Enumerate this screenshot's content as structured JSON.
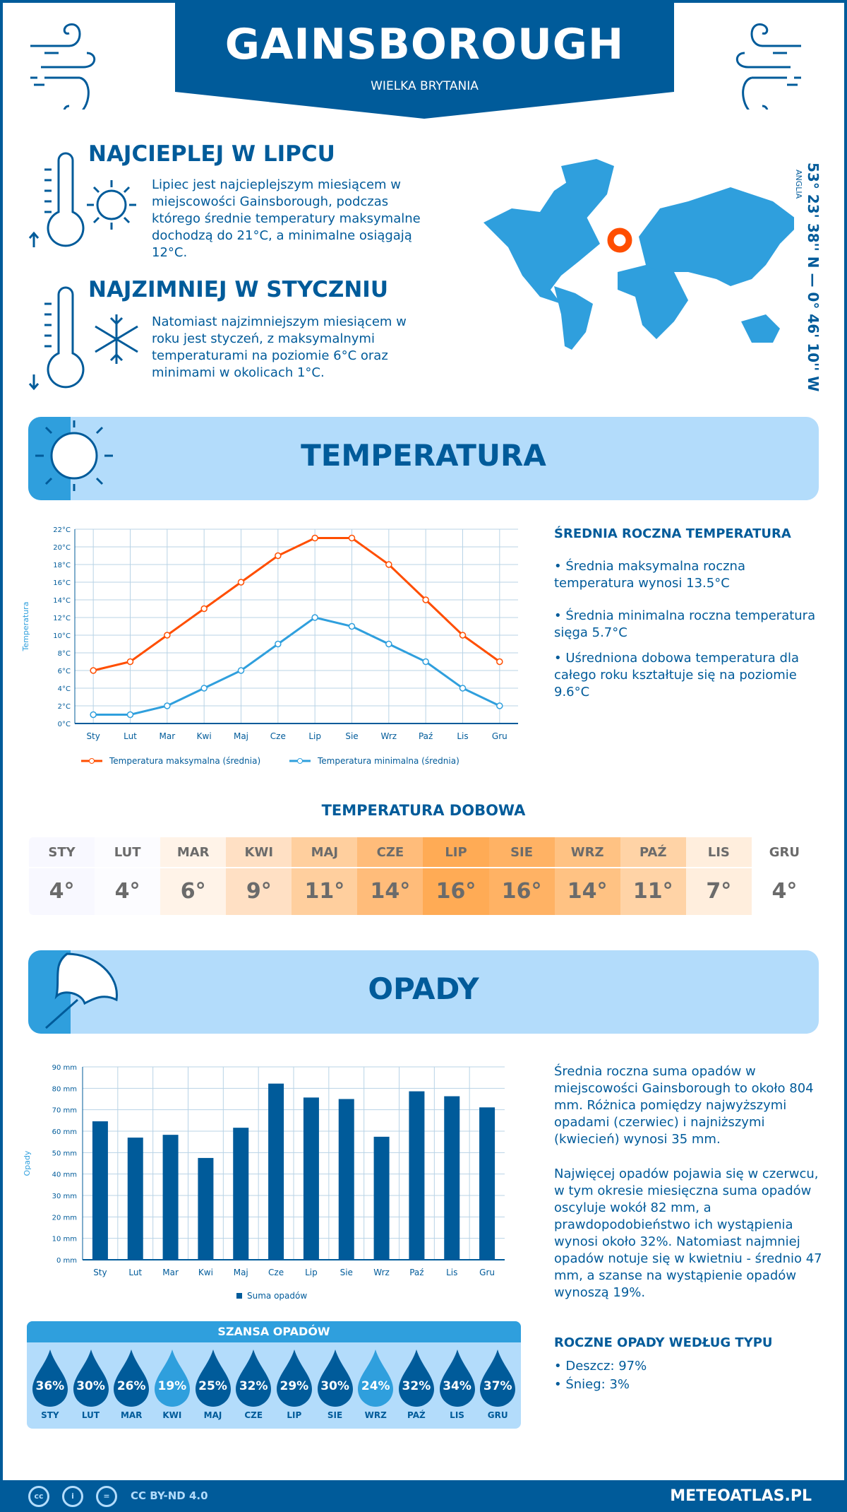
{
  "header": {
    "city": "GAINSBOROUGH",
    "country": "WIELKA BRYTANIA"
  },
  "warmest": {
    "title": "NAJCIEPLEJ W LIPCU",
    "text": "Lipiec jest najcieplejszym miesiącem w miejscowości Gainsborough, podczas którego średnie temperatury maksymalne dochodzą do 21°C, a minimalne osiągają 12°C."
  },
  "coldest": {
    "title": "NAJZIMNIEJ W STYCZNIU",
    "text": "Natomiast najzimniejszym miesiącem w roku jest styczeń, z maksymalnymi temperaturami na poziomie 6°C oraz minimami w okolicach 1°C."
  },
  "location": {
    "coords": "53° 23' 38'' N — 0° 46' 10'' W",
    "region": "ANGLIA"
  },
  "temperature_section": {
    "title": "TEMPERATURA",
    "summary_title": "ŚREDNIA ROCZNA TEMPERATURA",
    "summary": [
      "• Średnia maksymalna roczna temperatura wynosi 13.5°C",
      "• Średnia minimalna roczna temperatura sięga 5.7°C",
      "• Uśredniona dobowa temperatura dla całego roku kształtuje się na poziomie 9.6°C"
    ]
  },
  "daily": {
    "title": "TEMPERATURA DOBOWA",
    "months": [
      "STY",
      "LUT",
      "MAR",
      "KWI",
      "MAJ",
      "CZE",
      "LIP",
      "SIE",
      "WRZ",
      "PAŹ",
      "LIS",
      "GRU"
    ],
    "values": [
      "4°",
      "4°",
      "6°",
      "9°",
      "11°",
      "14°",
      "16°",
      "16°",
      "14°",
      "11°",
      "7°",
      "4°"
    ],
    "colors": [
      "#f8f8ff",
      "#fcfcff",
      "#fff3e8",
      "#ffe0c4",
      "#ffcf9e",
      "#ffbc7a",
      "#ffab55",
      "#ffb264",
      "#ffc283",
      "#ffd3a6",
      "#ffeedd",
      "#ffffff"
    ]
  },
  "precip_section": {
    "title": "OPADY",
    "summary": "Średnia roczna suma opadów w miejscowości Gainsborough to około 804 mm. Różnica pomiędzy najwyższymi opadami (czerwiec) i najniższymi (kwiecień) wynosi 35 mm.",
    "summary2": "Najwięcej opadów pojawia się w czerwcu, w tym okresie miesięczna suma opadów oscyluje wokół 82 mm, a prawdopodobieństwo ich wystąpienia wynosi około 32%. Natomiast najmniej opadów notuje się w kwietniu - średnio 47 mm, a szanse na wystąpienie opadów wynoszą 19%.",
    "types_title": "ROCZNE OPADY WEDŁUG TYPU",
    "types": [
      "• Deszcz: 97%",
      "• Śnieg: 3%"
    ]
  },
  "chance": {
    "title": "SZANSA OPADÓW",
    "months": [
      "STY",
      "LUT",
      "MAR",
      "KWI",
      "MAJ",
      "CZE",
      "LIP",
      "SIE",
      "WRZ",
      "PAŹ",
      "LIS",
      "GRU"
    ],
    "values": [
      "36%",
      "30%",
      "26%",
      "19%",
      "25%",
      "32%",
      "29%",
      "30%",
      "24%",
      "32%",
      "34%",
      "37%"
    ],
    "highlight": [
      "KWI",
      "WRZ"
    ]
  },
  "footer": {
    "license": "CC BY-ND 4.0",
    "site": "METEOATLAS.PL",
    "cc": "cc",
    "by": "i",
    "nd": "="
  },
  "colors": {
    "dark": "#005b9a",
    "light": "#b3dcfb",
    "mid": "#2f9fdd",
    "orange": "#ff4e00"
  },
  "chart_data": [
    {
      "type": "line",
      "categories": [
        "Sty",
        "Lut",
        "Mar",
        "Kwi",
        "Maj",
        "Cze",
        "Lip",
        "Sie",
        "Wrz",
        "Paź",
        "Lis",
        "Gru"
      ],
      "ylabel": "Temperatura",
      "ylim": [
        0,
        22
      ],
      "yticks": [
        "0°C",
        "2°C",
        "4°C",
        "6°C",
        "8°C",
        "10°C",
        "12°C",
        "14°C",
        "16°C",
        "18°C",
        "20°C",
        "22°C"
      ],
      "grid": true,
      "legend": "bottom",
      "series": [
        {
          "name": "Temperatura maksymalna (średnia)",
          "color": "#ff4e00",
          "values": [
            6,
            7,
            10,
            13,
            16,
            19,
            21,
            21,
            18,
            14,
            10,
            7
          ]
        },
        {
          "name": "Temperatura minimalna (średnia)",
          "color": "#2f9fdd",
          "values": [
            1,
            1,
            2,
            4,
            6,
            9,
            12,
            11,
            9,
            7,
            4,
            2
          ]
        }
      ]
    },
    {
      "type": "bar",
      "categories": [
        "Sty",
        "Lut",
        "Mar",
        "Kwi",
        "Maj",
        "Cze",
        "Lip",
        "Sie",
        "Wrz",
        "Paź",
        "Lis",
        "Gru"
      ],
      "ylabel": "Opady",
      "ylim": [
        0,
        90
      ],
      "yticks": [
        "0 mm",
        "10 mm",
        "20 mm",
        "30 mm",
        "40 mm",
        "50 mm",
        "60 mm",
        "70 mm",
        "80 mm",
        "90 mm"
      ],
      "grid": true,
      "legend": "bottom",
      "series": [
        {
          "name": "Suma opadów",
          "color": "#005b9a",
          "values": [
            64.6,
            57.0,
            58.3,
            47.5,
            61.6,
            82.2,
            75.7,
            75.0,
            57.4,
            78.6,
            76.3,
            71.1
          ]
        }
      ]
    }
  ]
}
